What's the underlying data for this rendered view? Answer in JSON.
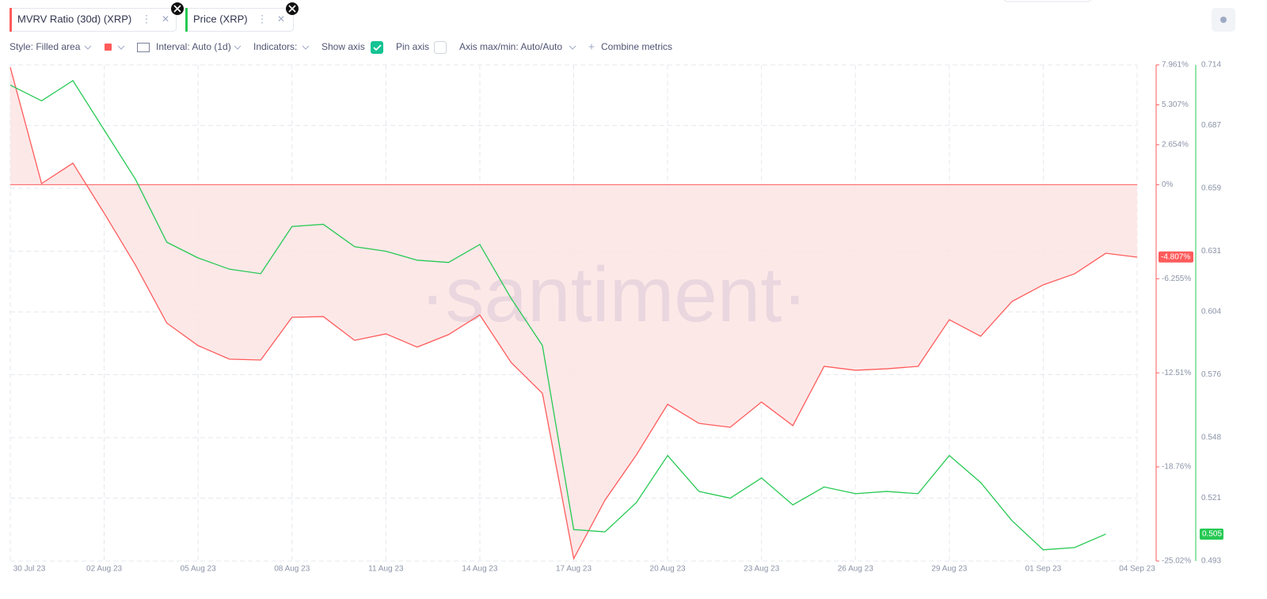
{
  "ui": {
    "tabs": [
      "MVRV Ratio (30d) (XRP)",
      "Price (XRP)"
    ],
    "toolbar": {
      "style": "Style: Filled area",
      "interval": "Interval: Auto (1d)",
      "indicators": "Indicators:",
      "show_axis": "Show axis",
      "pin_axis": "Pin axis",
      "axis_minmax": "Axis max/min: Auto/Auto",
      "combine": "Combine metrics"
    },
    "watermark": "·santiment·"
  },
  "chart_data": {
    "type": "line",
    "categories": [
      "30 Jul 23",
      null,
      null,
      "02 Aug 23",
      null,
      null,
      "05 Aug 23",
      null,
      null,
      "08 Aug 23",
      null,
      null,
      "11 Aug 23",
      null,
      null,
      "14 Aug 23",
      null,
      null,
      "17 Aug 23",
      null,
      null,
      "20 Aug 23",
      null,
      null,
      "23 Aug 23",
      null,
      null,
      "26 Aug 23",
      null,
      null,
      "29 Aug 23",
      null,
      null,
      "01 Sep 23",
      null,
      null,
      "04 Sep 23"
    ],
    "series": [
      {
        "name": "MVRV Ratio (30d) (XRP)",
        "color": "#ff5b5b",
        "fill": "#fde4e4",
        "values": [
          7.8,
          0.07,
          1.43,
          -1.9,
          -5.35,
          -9.2,
          -10.7,
          -11.6,
          -11.66,
          -8.82,
          -8.77,
          -10.35,
          -9.92,
          -10.8,
          -9.97,
          -8.66,
          -11.82,
          -13.87,
          -24.86,
          -20.97,
          -17.97,
          -14.6,
          -15.87,
          -16.13,
          -14.45,
          -16.02,
          -12.08,
          -12.34,
          -12.24,
          -12.08,
          -8.98,
          -10.08,
          -7.77,
          -6.66,
          -5.93,
          -4.56,
          -4.82
        ],
        "current": {
          "value": -4.807,
          "label": "-4.807%"
        }
      },
      {
        "name": "Price (XRP)",
        "color": "#26c953",
        "axis": "y2",
        "values": [
          0.705,
          0.698,
          0.707,
          0.685,
          0.663,
          0.635,
          0.628,
          0.623,
          0.621,
          0.642,
          0.643,
          0.633,
          0.631,
          0.627,
          0.626,
          0.634,
          0.61,
          0.589,
          0.507,
          0.506,
          0.519,
          0.54,
          0.524,
          0.521,
          0.53,
          0.518,
          0.526,
          0.523,
          0.524,
          0.523,
          0.54,
          0.528,
          0.511,
          0.498,
          0.499,
          0.505,
          null
        ],
        "current": {
          "value": 0.505,
          "label": "0.505"
        }
      }
    ],
    "ylim": [
      -25.02,
      7.961
    ],
    "yticks": [
      {
        "value": 7.961,
        "label": "7.961%"
      },
      {
        "value": 5.307,
        "label": "5.307%"
      },
      {
        "value": 2.654,
        "label": "2.654%"
      },
      {
        "value": 0,
        "label": "0%"
      },
      {
        "value": -6.255,
        "label": "-6.255%"
      },
      {
        "value": -12.51,
        "label": "-12.51%"
      },
      {
        "value": -18.76,
        "label": "-18.76%"
      },
      {
        "value": -25.02,
        "label": "-25.02%"
      }
    ],
    "y2lim": [
      0.493,
      0.714
    ],
    "y2ticks": [
      0.714,
      0.687,
      0.659,
      0.631,
      0.604,
      0.576,
      0.548,
      0.521,
      0.493
    ],
    "grid": true
  }
}
